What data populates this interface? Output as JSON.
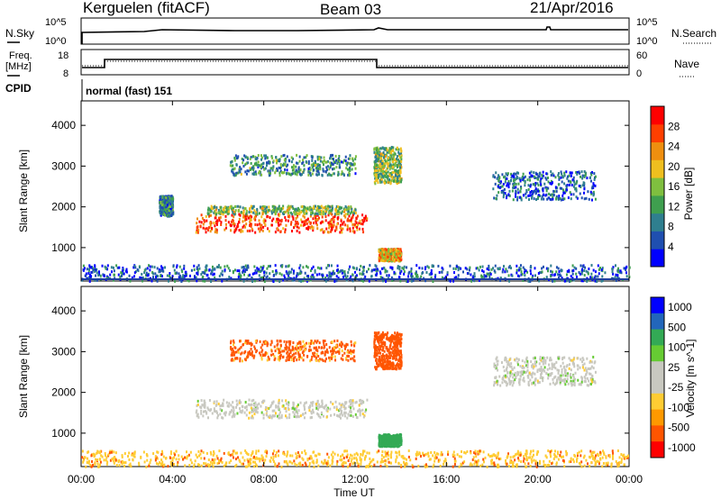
{
  "header": {
    "station": "Kerguelen (fitACF)",
    "beam": "Beam 03",
    "date": "21/Apr/2016"
  },
  "noise_panel": {
    "left_label": "N.Sky",
    "right_label": "N.Search",
    "left_ticks": [
      "10^5",
      "10^0"
    ],
    "right_ticks": [
      "10^5",
      "10^0"
    ]
  },
  "freq_panel": {
    "left_label_1": "Freq.",
    "left_label_2": "[MHz]",
    "right_label": "Nave",
    "left_ticks": [
      "18",
      "8"
    ],
    "right_ticks": [
      "60",
      "0"
    ]
  },
  "cpid": {
    "label": "CPID",
    "text": "normal (fast) 151"
  },
  "x_axis": {
    "ticks": [
      "00:00",
      "04:00",
      "08:00",
      "12:00",
      "16:00",
      "20:00",
      "00:00"
    ],
    "label": "Time UT"
  },
  "colors": {
    "power_scale": [
      "#0000ff",
      "#1f4fb0",
      "#2f7f8f",
      "#3f9f4f",
      "#7fbf3f",
      "#efbf1f",
      "#ef8f0f",
      "#ff3f00",
      "#ff0000"
    ],
    "velocity_scale": [
      "#ff0000",
      "#ff5500",
      "#ff9900",
      "#ffcc33",
      "#c8c8c0",
      "#c8c8c0",
      "#66cc33",
      "#33aa55",
      "#2266bb",
      "#0000ff"
    ],
    "ground_scatter": "#c8c8c0"
  },
  "chart_data": [
    {
      "type": "heatmap",
      "title": "",
      "xlabel": "",
      "ylabel": "Slant Range [km]",
      "x_range_hours": [
        0,
        24
      ],
      "ylim": [
        180,
        4600
      ],
      "yticks": [
        "1000",
        "2000",
        "3000",
        "4000"
      ],
      "colorbar_label": "Power [dB]",
      "colorbar_ticks": [
        "4",
        "8",
        "12",
        "16",
        "20",
        "24",
        "28"
      ],
      "colorbar_range": [
        0,
        30
      ],
      "regions": [
        {
          "t": [
            5.0,
            12.5
          ],
          "r": [
            1400,
            1850
          ],
          "value": 26
        },
        {
          "t": [
            5.5,
            12.0
          ],
          "r": [
            1850,
            2050
          ],
          "value": 14
        },
        {
          "t": [
            3.4,
            4.0
          ],
          "r": [
            1800,
            2300
          ],
          "value": 8
        },
        {
          "t": [
            6.5,
            12.0
          ],
          "r": [
            2800,
            3300
          ],
          "value": 10
        },
        {
          "t": [
            12.8,
            14.0
          ],
          "r": [
            2600,
            3500
          ],
          "value": 14
        },
        {
          "t": [
            13.0,
            14.0
          ],
          "r": [
            700,
            1000
          ],
          "value": 20
        },
        {
          "t": [
            18.0,
            22.5
          ],
          "r": [
            2200,
            2900
          ],
          "value": 6
        },
        {
          "t": [
            0,
            24
          ],
          "r": [
            200,
            600
          ],
          "value": 6
        }
      ]
    },
    {
      "type": "heatmap",
      "title": "",
      "xlabel": "Time UT",
      "ylabel": "Slant Range [km]",
      "x_range_hours": [
        0,
        24
      ],
      "ylim": [
        180,
        4600
      ],
      "yticks": [
        "1000",
        "2000",
        "3000",
        "4000"
      ],
      "colorbar_label": "Velocity [m s^-1]",
      "colorbar_ticks": [
        "1000",
        "500",
        "100",
        "25",
        "-25",
        "-100",
        "-500",
        "-1000"
      ],
      "regions": [
        {
          "t": [
            5.0,
            12.5
          ],
          "r": [
            1400,
            1850
          ],
          "value": 0
        },
        {
          "t": [
            6.5,
            12.0
          ],
          "r": [
            2800,
            3300
          ],
          "value": -120
        },
        {
          "t": [
            12.8,
            14.0
          ],
          "r": [
            2600,
            3500
          ],
          "value": -400
        },
        {
          "t": [
            13.0,
            14.0
          ],
          "r": [
            700,
            1000
          ],
          "value": 150
        },
        {
          "t": [
            18.0,
            22.5
          ],
          "r": [
            2200,
            2900
          ],
          "value": 0
        },
        {
          "t": [
            0,
            24
          ],
          "r": [
            200,
            600
          ],
          "value": -80
        }
      ]
    }
  ]
}
